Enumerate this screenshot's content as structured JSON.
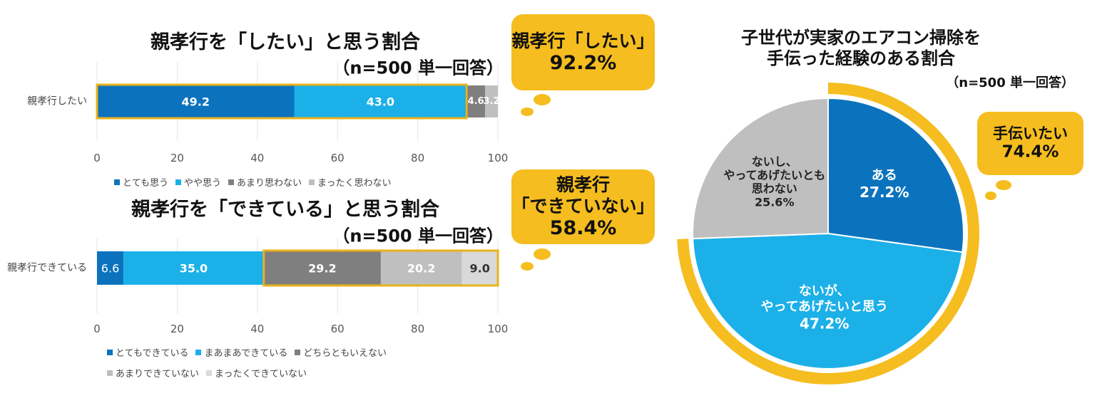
{
  "chart_data": [
    {
      "type": "stacked-bar",
      "title": "親孝行を「したい」と思う割合",
      "subtitle": "（n=500 単一回答）",
      "categories": [
        "親孝行したい"
      ],
      "series": [
        {
          "name": "とても思う",
          "color": "#0b73be",
          "values": [
            49.2
          ]
        },
        {
          "name": "やや思う",
          "color": "#1cb0e8",
          "values": [
            43.0
          ],
          "value_labels": [
            "43.0"
          ]
        },
        {
          "name": "あまり思わない",
          "color": "#7f7f7f",
          "values": [
            4.6
          ]
        },
        {
          "name": "まったく思わない",
          "color": "#bfbfbf",
          "values": [
            3.2
          ]
        }
      ],
      "xlim": [
        0,
        100
      ],
      "xticks": [
        0,
        20,
        40,
        60,
        80,
        100
      ],
      "grid": true,
      "callout": {
        "text": "親孝行「したい」",
        "value": 92.2,
        "value_label": "92.2%"
      }
    },
    {
      "type": "stacked-bar",
      "title": "親孝行を「できている」と思う割合",
      "subtitle": "（n=500 単一回答）",
      "categories": [
        "親孝行できている"
      ],
      "series": [
        {
          "name": "とてもできている",
          "color": "#0b73be",
          "values": [
            6.6
          ]
        },
        {
          "name": "まあまあできている",
          "color": "#1cb0e8",
          "values": [
            35.0
          ],
          "value_labels": [
            "35.0"
          ]
        },
        {
          "name": "どちらともいえない",
          "color": "#7f7f7f",
          "values": [
            29.2
          ]
        },
        {
          "name": "あまりできていない",
          "color": "#bfbfbf",
          "values": [
            20.2
          ]
        },
        {
          "name": "まったくできていない",
          "color": "#d9d9d9",
          "values": [
            9.0
          ],
          "value_labels": [
            "9.0"
          ]
        }
      ],
      "xlim": [
        0,
        100
      ],
      "xticks": [
        0,
        20,
        40,
        60,
        80,
        100
      ],
      "grid": true,
      "callout": {
        "text": "親孝行\n「できていない」",
        "value": 58.4,
        "value_label": "58.4%"
      }
    },
    {
      "type": "pie",
      "title": "子世代が実家のエアコン掃除を\n手伝った経験のある割合",
      "subtitle": "（n=500 単一回答）",
      "categories": [
        "ある",
        "ないが、\nやってあげたいと思う",
        "ないし、\nやってあげたいとも\n思わない"
      ],
      "values": [
        27.2,
        47.2,
        25.6
      ],
      "value_labels": [
        "27.2%",
        "47.2%",
        "25.6%"
      ],
      "colors": [
        "#0b73be",
        "#1cb0e8",
        "#bfbfbf"
      ],
      "callout": {
        "text": "手伝いたい",
        "value": 74.4,
        "value_label": "74.4%"
      }
    }
  ]
}
